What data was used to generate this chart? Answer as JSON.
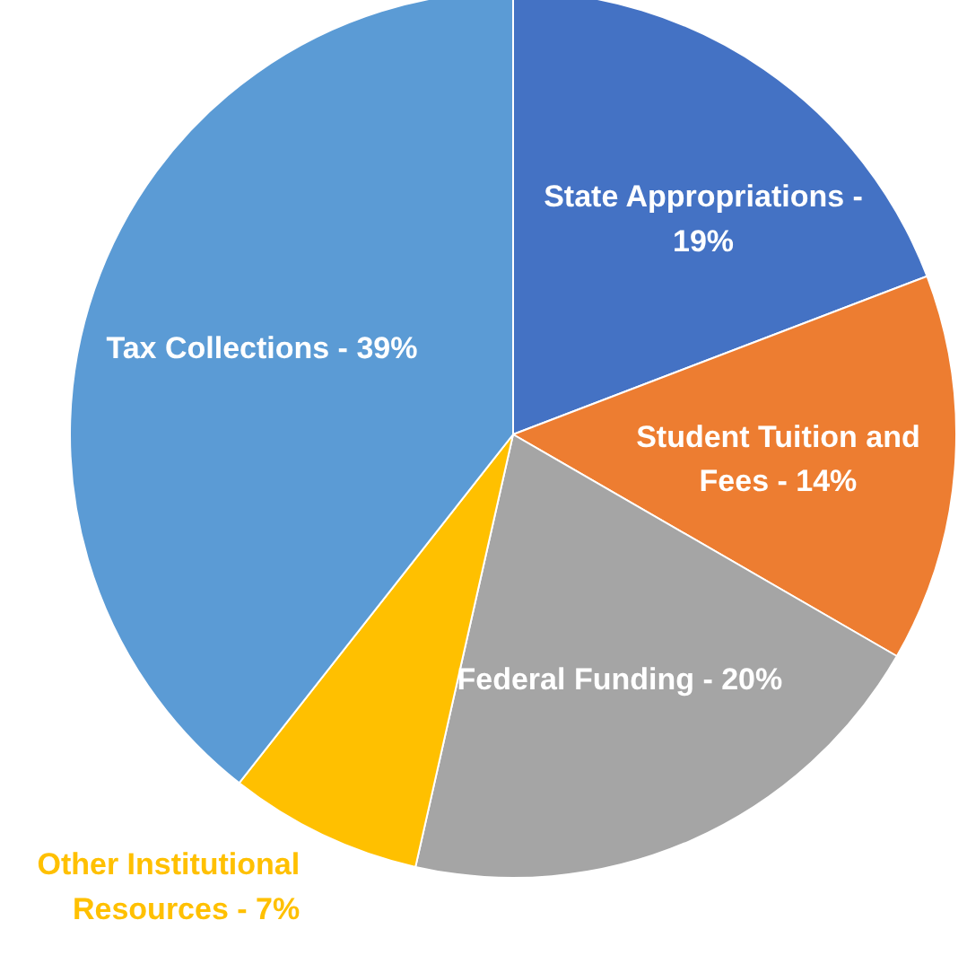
{
  "chart_data": {
    "type": "pie",
    "categories": [
      "State Appropriations -",
      "Student Tuition and Fees -",
      "Federal Funding -",
      "Other Institutional Resources -",
      "Tax Collections -"
    ],
    "values": [
      19,
      14,
      20,
      7,
      39
    ],
    "colors": [
      "#4472c4",
      "#ed7d31",
      "#a5a5a5",
      "#ffc000",
      "#5b9bd5"
    ],
    "value_labels": [
      "19%",
      "14%",
      "20%",
      "7%",
      "39%"
    ]
  }
}
